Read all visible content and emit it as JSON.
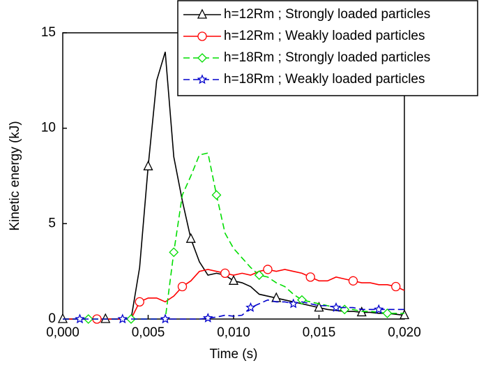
{
  "chart_data": {
    "type": "line",
    "xlabel": "Time (s)",
    "ylabel": "Kinetic energy (kJ)",
    "x": [
      0,
      0.0005,
      0.001,
      0.0015,
      0.002,
      0.0025,
      0.003,
      0.0035,
      0.004,
      0.0045,
      0.005,
      0.0055,
      0.006,
      0.0065,
      0.007,
      0.0075,
      0.008,
      0.0085,
      0.009,
      0.0095,
      0.01,
      0.0105,
      0.011,
      0.0115,
      0.012,
      0.0125,
      0.013,
      0.0135,
      0.014,
      0.0145,
      0.015,
      0.0155,
      0.016,
      0.0165,
      0.017,
      0.0175,
      0.018,
      0.0185,
      0.019,
      0.0195,
      0.02
    ],
    "xlim": [
      0,
      0.02
    ],
    "xticks": [
      {
        "value": 0,
        "label": "0,000"
      },
      {
        "value": 0.005,
        "label": "0,005"
      },
      {
        "value": 0.01,
        "label": "0,010"
      },
      {
        "value": 0.015,
        "label": "0,015"
      },
      {
        "value": 0.02,
        "label": "0,020"
      }
    ],
    "ylim": [
      0,
      15
    ],
    "yticks": [
      0,
      5,
      10,
      15
    ],
    "legend": "upper right",
    "series": [
      {
        "name": "h=12Rm ; Strongly loaded particles",
        "color": "#000000",
        "marker": "triangle",
        "dash": "solid",
        "values": [
          0,
          0,
          0,
          0,
          0,
          0,
          0,
          0,
          0,
          2.7,
          8,
          12.5,
          14,
          8.5,
          6.2,
          4.2,
          3.0,
          2.3,
          2.4,
          2.3,
          2.0,
          1.9,
          1.7,
          1.3,
          1.2,
          1.1,
          1.0,
          0.9,
          0.8,
          0.7,
          0.6,
          0.5,
          0.45,
          0.4,
          0.4,
          0.35,
          0.35,
          0.3,
          0.3,
          0.25,
          0.2
        ]
      },
      {
        "name": "h=12Rm ; Weakly loaded particles",
        "color": "#ff0000",
        "marker": "circle",
        "dash": "solid",
        "values": [
          0,
          0,
          0,
          0,
          0,
          0,
          0,
          0,
          0,
          0.9,
          1.1,
          1.1,
          0.9,
          1.2,
          1.7,
          2.0,
          2.5,
          2.6,
          2.5,
          2.4,
          2.3,
          2.4,
          2.3,
          2.5,
          2.6,
          2.5,
          2.6,
          2.5,
          2.4,
          2.2,
          2.0,
          2.0,
          2.2,
          2.1,
          2.0,
          1.9,
          1.9,
          1.8,
          1.8,
          1.7,
          1.5
        ]
      },
      {
        "name": "h=18Rm ; Strongly loaded particles",
        "color": "#00dd00",
        "marker": "diamond",
        "dash": "dashed",
        "values": [
          0,
          0,
          0,
          0,
          0,
          0,
          0,
          0,
          0,
          0,
          0,
          0,
          0,
          3.5,
          6.5,
          7.5,
          8.6,
          8.7,
          6.5,
          4.5,
          3.7,
          3.2,
          2.7,
          2.3,
          2.2,
          1.9,
          1.7,
          1.3,
          1.0,
          0.9,
          0.8,
          0.7,
          0.6,
          0.5,
          0.5,
          0.4,
          0.4,
          0.35,
          0.3,
          0.3,
          0.3
        ]
      },
      {
        "name": "h=18Rm ; Weakly loaded particles",
        "color": "#0000cc",
        "marker": "star",
        "dash": "dashed",
        "values": [
          0,
          0,
          0,
          0,
          0,
          0,
          0,
          0,
          0,
          0,
          0,
          0,
          0,
          0,
          0,
          0,
          0,
          0.05,
          0.1,
          0.2,
          0.15,
          0.2,
          0.6,
          0.8,
          1.0,
          0.9,
          0.9,
          0.8,
          0.9,
          0.8,
          0.7,
          0.7,
          0.6,
          0.6,
          0.6,
          0.5,
          0.5,
          0.5,
          0.5,
          0.5,
          0.5
        ]
      }
    ]
  }
}
